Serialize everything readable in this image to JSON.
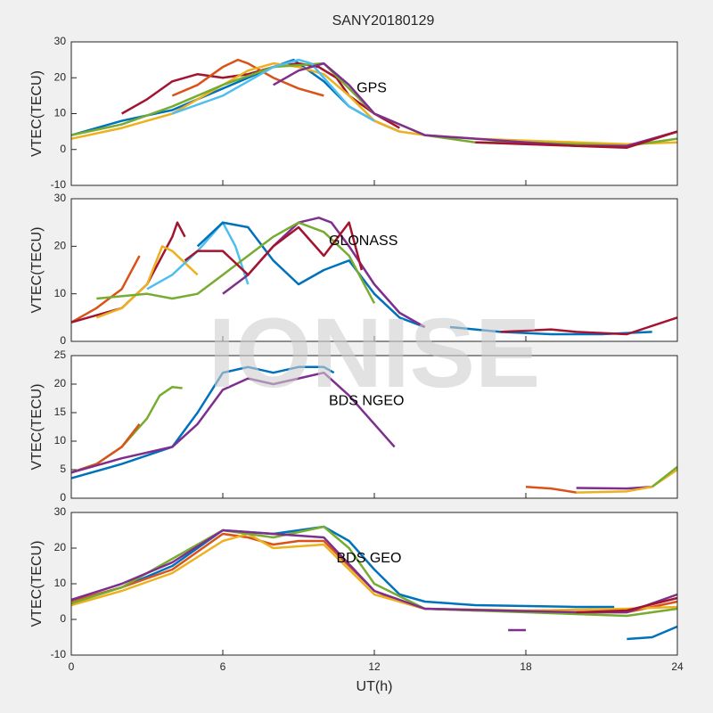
{
  "title": "SANY20180129",
  "watermark": "IONISE",
  "chart_data": [
    {
      "type": "line",
      "ylabel": "VTEC(TECU)",
      "annotation": {
        "text": "GPS",
        "x": 11.3,
        "y": 17
      },
      "xlim": [
        0,
        24
      ],
      "xticks": [
        0,
        6,
        12,
        18,
        24
      ],
      "ylim": [
        -10,
        30
      ],
      "yticks": [
        -10,
        0,
        10,
        20,
        30
      ],
      "series": [
        {
          "color": "#0072BD",
          "x": [
            0,
            2,
            4,
            6,
            8,
            8.8,
            10,
            11,
            12,
            13
          ],
          "values": [
            4,
            8,
            11,
            17,
            23,
            25,
            19,
            12,
            8,
            5
          ]
        },
        {
          "color": "#A2142F",
          "x": [
            2,
            3,
            4,
            5,
            6,
            7,
            8,
            9,
            9.8,
            10.5,
            11,
            12,
            13
          ],
          "values": [
            10,
            14,
            19,
            21,
            20,
            21,
            23,
            24,
            23,
            20,
            15,
            10,
            6
          ]
        },
        {
          "color": "#D95319",
          "x": [
            4,
            5,
            6,
            6.6,
            7,
            8,
            9,
            10
          ],
          "values": [
            15,
            18,
            23,
            25,
            24,
            20,
            17,
            15
          ]
        },
        {
          "color": "#EDB120",
          "x": [
            0,
            2,
            4,
            5,
            6,
            7,
            8,
            9,
            10,
            11,
            12,
            13,
            14,
            16,
            18,
            20,
            22,
            24
          ],
          "values": [
            3,
            6,
            10,
            14,
            18,
            22,
            24,
            23,
            21,
            15,
            8,
            5,
            4,
            3,
            2.5,
            2,
            1.5,
            2
          ]
        },
        {
          "color": "#77AC30",
          "x": [
            0,
            2,
            4,
            6,
            8,
            10,
            12,
            14,
            16,
            18,
            20,
            22,
            24
          ],
          "values": [
            4,
            7,
            12,
            18,
            23,
            24,
            10,
            4,
            2,
            2,
            1.5,
            1,
            3
          ]
        },
        {
          "color": "#4DBEEE",
          "x": [
            4,
            6,
            7,
            8,
            9,
            9.5,
            10,
            11,
            12
          ],
          "values": [
            10,
            15,
            19,
            23,
            25,
            24,
            20,
            12,
            8
          ]
        },
        {
          "color": "#7E2F8E",
          "x": [
            8,
            9,
            10,
            11,
            12,
            14,
            16,
            18,
            20,
            22,
            24
          ],
          "values": [
            18,
            22,
            24,
            18,
            10,
            4,
            3,
            2,
            1,
            1,
            5
          ]
        },
        {
          "color": "#A2142F",
          "x": [
            16,
            18,
            20,
            22,
            24
          ],
          "values": [
            2,
            1.5,
            1,
            0.5,
            5
          ]
        }
      ]
    },
    {
      "type": "line",
      "ylabel": "VTEC(TECU)",
      "annotation": {
        "text": "GLONASS",
        "x": 10.2,
        "y": 21
      },
      "xlim": [
        0,
        24
      ],
      "xticks": [
        0,
        6,
        12,
        18,
        24
      ],
      "ylim": [
        0,
        30
      ],
      "yticks": [
        0,
        10,
        20,
        30
      ],
      "series": [
        {
          "color": "#D95319",
          "x": [
            0,
            1,
            2,
            2.7
          ],
          "values": [
            4,
            7,
            11,
            18
          ]
        },
        {
          "color": "#A2142F",
          "x": [
            0,
            2,
            3,
            4,
            4.2,
            4.5
          ],
          "values": [
            4,
            7,
            12,
            22,
            25,
            22
          ]
        },
        {
          "color": "#EDB120",
          "x": [
            1,
            2,
            3,
            3.6,
            4,
            5
          ],
          "values": [
            5,
            7,
            12,
            20,
            19,
            14
          ]
        },
        {
          "color": "#4DBEEE",
          "x": [
            3,
            4,
            5,
            6,
            6.5,
            7
          ],
          "values": [
            11,
            14,
            19,
            25,
            20,
            12
          ]
        },
        {
          "color": "#0072BD",
          "x": [
            5,
            6,
            7,
            8,
            9,
            10,
            11,
            12,
            13,
            14
          ],
          "values": [
            20,
            25,
            24,
            17,
            12,
            15,
            17,
            10,
            5,
            3
          ]
        },
        {
          "color": "#7E2F8E",
          "x": [
            6,
            7,
            8,
            9,
            9.8,
            10.3,
            11,
            12,
            13,
            14
          ],
          "values": [
            10,
            14,
            20,
            25,
            26,
            25,
            20,
            12,
            6,
            3
          ]
        },
        {
          "color": "#77AC30",
          "x": [
            1,
            3,
            4,
            5,
            6,
            8,
            9,
            10,
            11,
            12
          ],
          "values": [
            9,
            10,
            9,
            10,
            14,
            22,
            25,
            23,
            18,
            8
          ]
        },
        {
          "color": "#A2142F",
          "x": [
            4.5,
            5,
            6,
            7,
            8,
            9,
            10,
            11,
            11.5
          ],
          "values": [
            17,
            19,
            19,
            14,
            20,
            24,
            18,
            25,
            15
          ]
        },
        {
          "color": "#0072BD",
          "x": [
            15,
            17,
            19,
            21,
            23
          ],
          "values": [
            3,
            2,
            1.5,
            1.5,
            2
          ]
        },
        {
          "color": "#A2142F",
          "x": [
            17,
            19,
            20,
            22,
            24
          ],
          "values": [
            2,
            2.5,
            2,
            1.5,
            5
          ]
        }
      ]
    },
    {
      "type": "line",
      "ylabel": "VTEC(TECU)",
      "annotation": {
        "text": "BDS NGEO",
        "x": 10.2,
        "y": 17
      },
      "xlim": [
        0,
        24
      ],
      "xticks": [
        0,
        6,
        12,
        18,
        24
      ],
      "ylim": [
        0,
        25
      ],
      "yticks": [
        0,
        5,
        10,
        15,
        20,
        25
      ],
      "series": [
        {
          "color": "#77AC30",
          "x": [
            0,
            1,
            2,
            3,
            3.5,
            4,
            4.4
          ],
          "values": [
            4.5,
            6,
            9,
            14,
            18,
            19.5,
            19.3
          ]
        },
        {
          "color": "#D95319",
          "x": [
            0,
            1,
            2,
            2.7
          ],
          "values": [
            4.5,
            6,
            9,
            13
          ]
        },
        {
          "color": "#0072BD",
          "x": [
            0,
            2,
            4,
            5,
            6,
            7,
            8,
            9,
            10,
            10.4
          ],
          "values": [
            3.5,
            6,
            9,
            15,
            22,
            23,
            22,
            23,
            23,
            22
          ]
        },
        {
          "color": "#7E2F8E",
          "x": [
            0,
            2,
            4,
            5,
            6,
            7,
            8,
            9,
            10,
            11,
            12,
            12.8
          ],
          "values": [
            4.5,
            7,
            9,
            13,
            19,
            21,
            20,
            21,
            22,
            18,
            13,
            9
          ]
        },
        {
          "color": "#D95319",
          "x": [
            18,
            19,
            20
          ],
          "values": [
            2,
            1.7,
            1
          ]
        },
        {
          "color": "#7E2F8E",
          "x": [
            20,
            22,
            23
          ],
          "values": [
            1.8,
            1.7,
            2
          ]
        },
        {
          "color": "#EDB120",
          "x": [
            20,
            22,
            23,
            24
          ],
          "values": [
            1,
            1.2,
            2,
            5
          ]
        },
        {
          "color": "#77AC30",
          "x": [
            23,
            24
          ],
          "values": [
            2,
            5.5
          ]
        }
      ]
    },
    {
      "type": "line",
      "ylabel": "VTEC(TECU)",
      "xlabel": "UT(h)",
      "annotation": {
        "text": "BDS GEO",
        "x": 10.5,
        "y": 17
      },
      "xlim": [
        0,
        24
      ],
      "xticks": [
        0,
        6,
        12,
        18,
        24
      ],
      "ylim": [
        -10,
        30
      ],
      "yticks": [
        -10,
        0,
        10,
        20,
        30
      ],
      "series": [
        {
          "color": "#0072BD",
          "x": [
            0,
            2,
            4,
            6,
            8,
            10,
            11,
            12,
            13,
            14,
            16,
            20,
            21.5
          ],
          "values": [
            5,
            9,
            15,
            25,
            24,
            26,
            22,
            14,
            7,
            5,
            4,
            3.5,
            3.5
          ]
        },
        {
          "color": "#D95319",
          "x": [
            0,
            2,
            4,
            6,
            7,
            8,
            9,
            10,
            11,
            12,
            13,
            14,
            16,
            20,
            22,
            24
          ],
          "values": [
            5,
            9,
            14,
            24,
            23,
            21,
            22,
            22,
            15,
            8,
            5,
            3,
            2.5,
            2,
            2,
            5
          ]
        },
        {
          "color": "#EDB120",
          "x": [
            0,
            2,
            4,
            6,
            7,
            8,
            10,
            12,
            14,
            18,
            22,
            24
          ],
          "values": [
            4,
            8,
            13,
            22,
            24,
            20,
            21,
            7,
            3,
            2.5,
            3,
            3.5
          ]
        },
        {
          "color": "#77AC30",
          "x": [
            0,
            2,
            4,
            6,
            8,
            10,
            11,
            12,
            14,
            18,
            22,
            24
          ],
          "values": [
            4.5,
            9,
            17,
            25,
            23,
            26,
            20,
            10,
            3,
            2,
            1,
            3
          ]
        },
        {
          "color": "#7E2F8E",
          "x": [
            0,
            2,
            4,
            6,
            8,
            10,
            12,
            14,
            20,
            22,
            24
          ],
          "values": [
            5.5,
            10,
            16,
            25,
            24,
            23,
            8,
            3,
            2,
            2,
            7
          ]
        },
        {
          "color": "#A2142F",
          "x": [
            20,
            22,
            24
          ],
          "values": [
            2,
            2.5,
            6
          ]
        },
        {
          "color": "#0072BD",
          "x": [
            22,
            23,
            24
          ],
          "values": [
            -5.5,
            -5,
            -2
          ]
        },
        {
          "color": "#7E2F8E",
          "x": [
            17.3,
            18
          ],
          "values": [
            -3,
            -3
          ]
        }
      ]
    }
  ]
}
